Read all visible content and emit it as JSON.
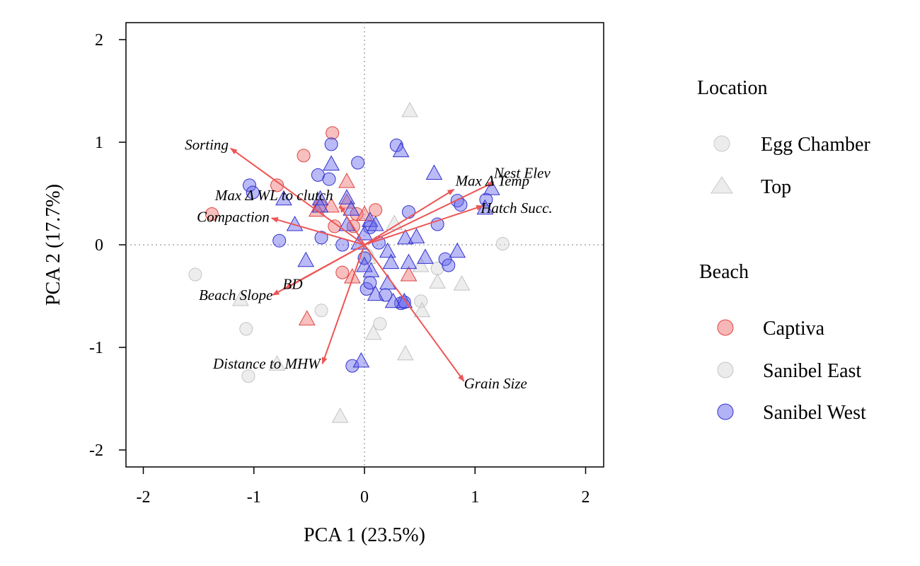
{
  "chart_data": {
    "type": "scatter",
    "xlabel": "PCA 1 (23.5%)",
    "ylabel": "PCA 2 (17.7%)",
    "xlim": [
      -2.16,
      2.16
    ],
    "ylim": [
      -2.16,
      2.16
    ],
    "xticks": [
      {
        "value": -2,
        "label": "-2"
      },
      {
        "value": -1,
        "label": "-1"
      },
      {
        "value": 0,
        "label": "0"
      },
      {
        "value": 1,
        "label": "1"
      },
      {
        "value": 2,
        "label": "2"
      }
    ],
    "yticks": [
      {
        "value": -2,
        "label": "-2"
      },
      {
        "value": -1,
        "label": "-1"
      },
      {
        "value": 0,
        "label": "0"
      },
      {
        "value": 1,
        "label": "1"
      },
      {
        "value": 2,
        "label": "2"
      }
    ],
    "reference_lines": {
      "x": 0,
      "y": 0,
      "style": "dotted"
    },
    "colors": {
      "Captiva": "#f07070",
      "Sanibel East": "#d8d8d8",
      "Sanibel West": "#6666ee",
      "arrow": "#ee5555"
    },
    "legend": {
      "location": {
        "title": "Location",
        "items": [
          {
            "label": "Egg Chamber",
            "shape": "circle"
          },
          {
            "label": "Top",
            "shape": "triangle"
          }
        ]
      },
      "beach": {
        "title": "Beach",
        "items": [
          {
            "label": "Captiva",
            "color": "#f07070"
          },
          {
            "label": "Sanibel East",
            "color": "#d8d8d8"
          },
          {
            "label": "Sanibel West",
            "color": "#6666ee"
          }
        ]
      }
    },
    "loadings": [
      {
        "label": "Sorting",
        "x": -1.21,
        "y": 0.94
      },
      {
        "label": "Max Δ WL to clutch",
        "x": -0.22,
        "y": 0.38
      },
      {
        "label": "Compaction",
        "x": -0.84,
        "y": 0.26
      },
      {
        "label": "Nest Elev",
        "x": 1.17,
        "y": 0.61
      },
      {
        "label": "Max Δ Temp",
        "x": 0.81,
        "y": 0.54
      },
      {
        "label": "Hatch Succ.",
        "x": 1.07,
        "y": 0.38
      },
      {
        "label": "BD",
        "x": -0.72,
        "y": -0.43
      },
      {
        "label": "Beach Slope",
        "x": -0.83,
        "y": -0.49
      },
      {
        "label": "Distance to MHW",
        "x": -0.38,
        "y": -1.16
      },
      {
        "label": "Grain Size",
        "x": 0.9,
        "y": -1.33
      }
    ],
    "series": [
      {
        "beach": "Captiva",
        "location": "Egg Chamber",
        "points": [
          [
            -1.38,
            0.3
          ],
          [
            -0.55,
            0.87
          ],
          [
            -0.29,
            1.09
          ],
          [
            -0.79,
            0.58
          ],
          [
            -0.4,
            0.38
          ],
          [
            -0.1,
            0.18
          ],
          [
            -0.27,
            0.18
          ],
          [
            -0.07,
            0.3
          ],
          [
            0.1,
            0.34
          ],
          [
            -0.2,
            -0.27
          ]
        ]
      },
      {
        "beach": "Captiva",
        "location": "Top",
        "points": [
          [
            -0.16,
            0.62
          ],
          [
            -0.16,
            0.42
          ],
          [
            -0.3,
            0.38
          ],
          [
            -0.43,
            0.34
          ],
          [
            0.0,
            0.3
          ],
          [
            0.4,
            -0.29
          ],
          [
            -0.11,
            -0.31
          ],
          [
            -0.52,
            -0.72
          ]
        ]
      },
      {
        "beach": "Sanibel East",
        "location": "Egg Chamber",
        "points": [
          [
            -1.53,
            -0.29
          ],
          [
            -1.07,
            -0.82
          ],
          [
            -1.05,
            -1.28
          ],
          [
            -0.39,
            -0.64
          ],
          [
            0.14,
            -0.77
          ],
          [
            0.51,
            -0.55
          ],
          [
            0.66,
            -0.23
          ],
          [
            1.25,
            0.01
          ],
          [
            0.02,
            -0.1
          ]
        ]
      },
      {
        "beach": "Sanibel East",
        "location": "Top",
        "points": [
          [
            0.41,
            1.31
          ],
          [
            -1.12,
            -0.53
          ],
          [
            -0.79,
            -1.16
          ],
          [
            -0.22,
            -1.67
          ],
          [
            0.37,
            -1.06
          ],
          [
            0.08,
            -0.86
          ],
          [
            0.52,
            -0.64
          ],
          [
            0.51,
            -0.2
          ],
          [
            0.66,
            -0.36
          ],
          [
            0.88,
            -0.38
          ],
          [
            0.03,
            -0.12
          ],
          [
            0.27,
            0.21
          ]
        ]
      },
      {
        "beach": "Sanibel West",
        "location": "Egg Chamber",
        "points": [
          [
            -1.04,
            0.58
          ],
          [
            -1.01,
            0.51
          ],
          [
            -0.42,
            0.68
          ],
          [
            -0.32,
            0.64
          ],
          [
            -0.3,
            0.98
          ],
          [
            -0.06,
            0.8
          ],
          [
            0.29,
            0.97
          ],
          [
            0.4,
            0.32
          ],
          [
            0.66,
            0.2
          ],
          [
            0.84,
            0.43
          ],
          [
            0.87,
            0.39
          ],
          [
            1.1,
            0.44
          ],
          [
            -0.77,
            0.04
          ],
          [
            -0.39,
            0.07
          ],
          [
            -0.2,
            0.0
          ],
          [
            0.05,
            0.17
          ],
          [
            0.13,
            0.02
          ],
          [
            0.0,
            -0.13
          ],
          [
            0.02,
            -0.43
          ],
          [
            0.05,
            -0.37
          ],
          [
            0.19,
            -0.49
          ],
          [
            0.33,
            -0.57
          ],
          [
            0.36,
            -0.56
          ],
          [
            0.73,
            -0.14
          ],
          [
            0.76,
            -0.2
          ],
          [
            -0.11,
            -1.18
          ]
        ]
      },
      {
        "beach": "Sanibel West",
        "location": "Top",
        "points": [
          [
            -0.3,
            0.79
          ],
          [
            0.33,
            0.92
          ],
          [
            0.63,
            0.7
          ],
          [
            1.15,
            0.55
          ],
          [
            1.09,
            0.36
          ],
          [
            -0.4,
            0.45
          ],
          [
            -0.4,
            0.38
          ],
          [
            -0.16,
            0.46
          ],
          [
            -0.12,
            0.35
          ],
          [
            0.05,
            0.24
          ],
          [
            0.1,
            0.2
          ],
          [
            -0.16,
            0.2
          ],
          [
            -0.63,
            0.2
          ],
          [
            -0.73,
            0.45
          ],
          [
            0.0,
            0.11
          ],
          [
            -0.05,
            0.02
          ],
          [
            0.37,
            0.07
          ],
          [
            0.47,
            0.08
          ],
          [
            0.21,
            -0.06
          ],
          [
            -0.53,
            -0.15
          ],
          [
            0.0,
            -0.2
          ],
          [
            0.06,
            -0.25
          ],
          [
            0.24,
            -0.17
          ],
          [
            0.4,
            -0.17
          ],
          [
            0.55,
            -0.12
          ],
          [
            0.84,
            -0.06
          ],
          [
            0.21,
            -0.37
          ],
          [
            0.1,
            -0.48
          ],
          [
            0.26,
            -0.55
          ],
          [
            0.36,
            -0.55
          ],
          [
            -0.03,
            -1.13
          ]
        ]
      }
    ]
  }
}
